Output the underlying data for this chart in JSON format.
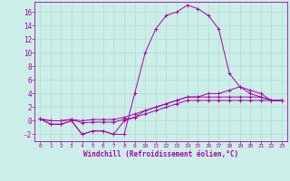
{
  "xlabel": "Windchill (Refroidissement éolien,°C)",
  "background_color": "#cceee8",
  "grid_color": "#aaddcc",
  "line_color": "#aa00aa",
  "xlim": [
    -0.5,
    23.5
  ],
  "ylim": [
    -3.0,
    17.5
  ],
  "xticks": [
    0,
    1,
    2,
    3,
    4,
    5,
    6,
    7,
    8,
    9,
    10,
    11,
    12,
    13,
    14,
    15,
    16,
    17,
    18,
    19,
    20,
    21,
    22,
    23
  ],
  "yticks": [
    -2,
    0,
    2,
    4,
    6,
    8,
    10,
    12,
    14,
    16
  ],
  "series": [
    {
      "x": [
        0,
        1,
        2,
        3,
        4,
        5,
        6,
        7,
        8,
        9,
        10,
        11,
        12,
        13,
        14,
        15,
        16,
        17,
        18,
        19,
        20,
        21,
        22,
        23
      ],
      "y": [
        0.3,
        -0.5,
        -0.5,
        0.0,
        -2.0,
        -1.5,
        -1.5,
        -2.0,
        -2.0,
        4.0,
        10.0,
        13.5,
        15.5,
        16.0,
        17.0,
        16.5,
        15.5,
        13.5,
        7.0,
        5.0,
        4.5,
        4.0,
        3.0,
        3.0
      ]
    },
    {
      "x": [
        0,
        1,
        2,
        3,
        4,
        5,
        6,
        7,
        8,
        9,
        10,
        11,
        12,
        13,
        14,
        15,
        16,
        17,
        18,
        19,
        20,
        21,
        22,
        23
      ],
      "y": [
        0.3,
        -0.5,
        -0.5,
        0.0,
        -2.0,
        -1.5,
        -1.5,
        -2.0,
        0.0,
        0.5,
        1.5,
        2.0,
        2.5,
        3.0,
        3.5,
        3.5,
        4.0,
        4.0,
        4.5,
        5.0,
        4.0,
        3.5,
        3.0,
        3.0
      ]
    },
    {
      "x": [
        0,
        1,
        2,
        3,
        4,
        5,
        6,
        7,
        8,
        9,
        10,
        11,
        12,
        13,
        14,
        15,
        16,
        17,
        18,
        19,
        20,
        21,
        22,
        23
      ],
      "y": [
        0.3,
        0.0,
        0.0,
        0.2,
        0.0,
        0.2,
        0.2,
        0.2,
        0.5,
        1.0,
        1.5,
        2.0,
        2.5,
        3.0,
        3.5,
        3.5,
        3.5,
        3.5,
        3.5,
        3.5,
        3.5,
        3.5,
        3.0,
        3.0
      ]
    },
    {
      "x": [
        0,
        1,
        2,
        3,
        4,
        5,
        6,
        7,
        8,
        9,
        10,
        11,
        12,
        13,
        14,
        15,
        16,
        17,
        18,
        19,
        20,
        21,
        22,
        23
      ],
      "y": [
        0.3,
        0.0,
        0.0,
        0.2,
        -0.3,
        -0.2,
        -0.2,
        -0.2,
        0.2,
        0.5,
        1.0,
        1.5,
        2.0,
        2.5,
        3.0,
        3.0,
        3.0,
        3.0,
        3.0,
        3.0,
        3.0,
        3.0,
        3.0,
        3.0
      ]
    }
  ]
}
